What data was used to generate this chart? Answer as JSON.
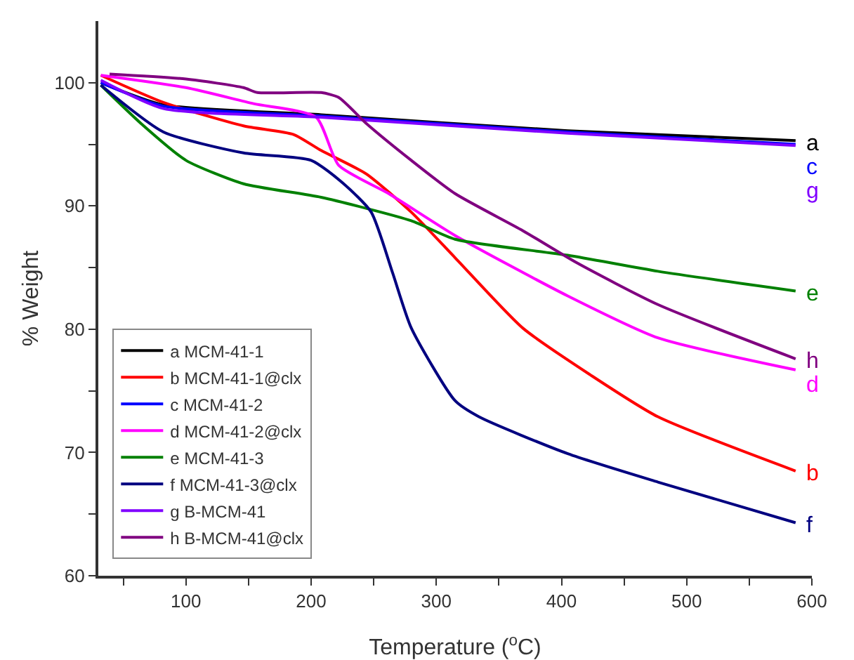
{
  "chart_data": {
    "type": "line",
    "xlabel": "Temperature ($^{o}$C)",
    "ylabel": "% Weight",
    "xlim": [
      30,
      600
    ],
    "xticks": [
      {
        "value": 50,
        "label": null
      },
      100,
      {
        "value": 150,
        "label": null
      },
      200,
      {
        "value": 250,
        "label": null
      },
      300,
      {
        "value": 350,
        "label": null
      },
      400,
      {
        "value": 450,
        "label": null
      },
      500,
      {
        "value": 550,
        "label": null
      },
      600
    ],
    "ylim": [
      60,
      105
    ],
    "yticks": [
      60,
      {
        "value": 65,
        "label": null
      },
      70,
      {
        "value": 75,
        "label": null
      },
      80,
      {
        "value": 85,
        "label": null
      },
      90,
      {
        "value": 95,
        "label": null
      },
      100
    ],
    "grid": false,
    "legend": "bottom left",
    "marker": "none",
    "line_style": "solid",
    "series": [
      {
        "name": "a MCM-41-1",
        "color": "#000000",
        "x": [
          32,
          82,
          208,
          405,
          587
        ],
        "values": [
          100,
          98.2,
          97.4,
          96.1,
          95.3
        ]
      },
      {
        "name": "b MCM-41-1@clx",
        "color": "#ff0000",
        "x": [
          32,
          82,
          146,
          186,
          208,
          244,
          280,
          315,
          369,
          423,
          477,
          587
        ],
        "values": [
          100.6,
          98.4,
          96.5,
          95.8,
          94.5,
          92.6,
          89.5,
          85.8,
          80.1,
          76.3,
          72.9,
          68.5
        ]
      },
      {
        "name": "c MCM-41-2",
        "color": "#0000ff",
        "x": [
          32,
          82,
          208,
          405,
          587
        ],
        "values": [
          100,
          98.1,
          97.3,
          96,
          95.0
        ]
      },
      {
        "name": "d MCM-41-2@clx",
        "color": "#ff00ff",
        "x": [
          32,
          100,
          154,
          204,
          222,
          262,
          315,
          405,
          477,
          587
        ],
        "values": [
          100.6,
          99.6,
          98.3,
          97.2,
          93.3,
          91,
          87.6,
          82.7,
          79.3,
          76.7
        ]
      },
      {
        "name": "e MCM-41-3",
        "color": "#008000",
        "x": [
          32,
          64,
          100,
          146,
          208,
          280,
          315,
          405,
          477,
          587
        ],
        "values": [
          99.8,
          96.7,
          93.7,
          91.8,
          90.7,
          88.8,
          87.3,
          86,
          84.7,
          83.1
        ]
      },
      {
        "name": "f MCM-41-3@clx",
        "color": "#000080",
        "x": [
          32,
          82,
          146,
          200,
          226,
          248,
          265,
          280,
          315,
          334,
          405,
          477,
          587
        ],
        "values": [
          99.8,
          96,
          94.3,
          93.7,
          91.8,
          89.5,
          84.6,
          80.1,
          74.2,
          72.9,
          69.9,
          67.6,
          64.3
        ]
      },
      {
        "name": "g B-MCM-41",
        "color": "#8000ff",
        "x": [
          32,
          82,
          208,
          405,
          587
        ],
        "values": [
          100.2,
          97.9,
          97.2,
          95.9,
          94.9
        ]
      },
      {
        "name": "h B-MCM-41@clx",
        "color": "#800080",
        "x": [
          39,
          100,
          146,
          157,
          208,
          222,
          244,
          280,
          315,
          369,
          412,
          477,
          587
        ],
        "values": [
          100.7,
          100.3,
          99.6,
          99.2,
          99.2,
          98.8,
          96.7,
          93.7,
          91,
          88,
          85.4,
          82,
          77.6
        ]
      }
    ],
    "annotations": [
      "a",
      "b",
      "c",
      "d",
      "e",
      "f",
      "g",
      "h"
    ]
  }
}
